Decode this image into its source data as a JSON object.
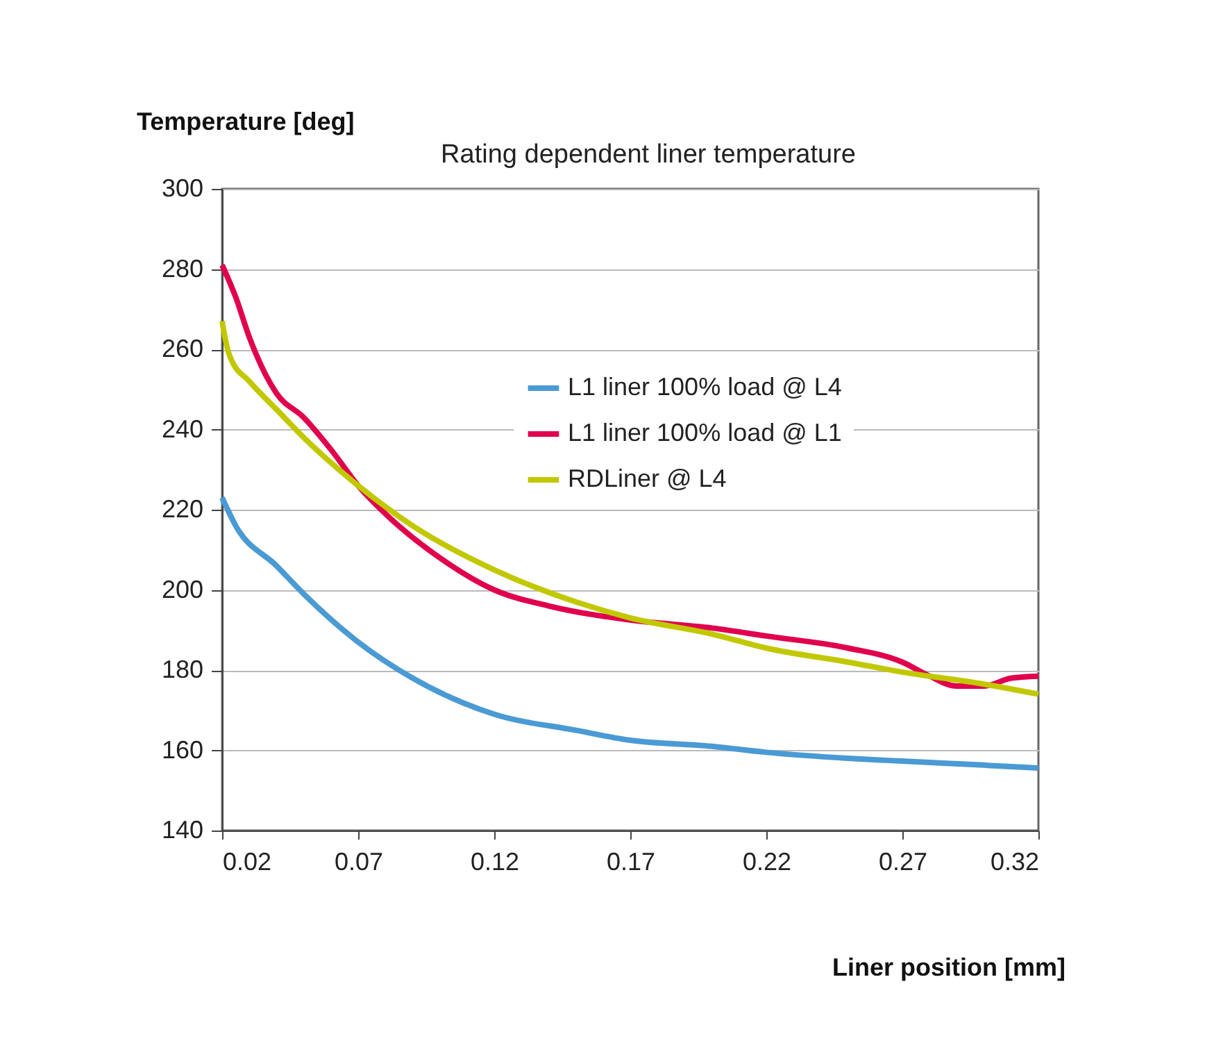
{
  "chart_data": {
    "type": "line",
    "title": "Rating dependent liner temperature",
    "xlabel": "Liner position [mm]",
    "ylabel": "Temperature [deg]",
    "xlim": [
      0.02,
      0.32
    ],
    "xticks": [
      0.02,
      0.07,
      0.12,
      0.17,
      0.22,
      0.27,
      0.32
    ],
    "ylim": [
      140,
      300
    ],
    "yticks": [
      140,
      160,
      180,
      200,
      220,
      240,
      260,
      280,
      300
    ],
    "grid": "y",
    "legend": "top right",
    "line_style": "solid",
    "marker": "none",
    "series": [
      {
        "name": "L1 liner 100% load @ L4",
        "color": "#4a9ad4",
        "x": [
          0.02,
          0.025,
          0.04,
          0.05,
          0.07,
          0.09,
          0.12,
          0.15,
          0.17,
          0.2,
          0.22,
          0.25,
          0.27,
          0.3,
          0.32
        ],
        "values": [
          223,
          216,
          206,
          199,
          187,
          178,
          169,
          165,
          162.5,
          161,
          159.5,
          158,
          157.3,
          156.3,
          155.6
        ]
      },
      {
        "name": "L1 liner 100% load @ L1",
        "color": "#e0004d",
        "x": [
          0.02,
          0.025,
          0.03,
          0.04,
          0.05,
          0.06,
          0.07,
          0.08,
          0.1,
          0.12,
          0.14,
          0.17,
          0.2,
          0.22,
          0.25,
          0.27,
          0.28,
          0.29,
          0.3,
          0.31,
          0.32
        ],
        "values": [
          281,
          273,
          263,
          249,
          243,
          235,
          226,
          219,
          208,
          200,
          196,
          192.5,
          190.5,
          188.5,
          185.5,
          182,
          178.5,
          176,
          176,
          178,
          178.5
        ]
      },
      {
        "name": "RDLiner @ L4",
        "color": "#c2c800",
        "x": [
          0.02,
          0.022,
          0.023,
          0.03,
          0.04,
          0.05,
          0.07,
          0.09,
          0.12,
          0.15,
          0.17,
          0.2,
          0.22,
          0.25,
          0.27,
          0.3,
          0.32
        ],
        "values": [
          267,
          260,
          258,
          252,
          245,
          238,
          226,
          216,
          205,
          197,
          193,
          189,
          185.5,
          182,
          179.5,
          176.5,
          174
        ]
      }
    ]
  }
}
